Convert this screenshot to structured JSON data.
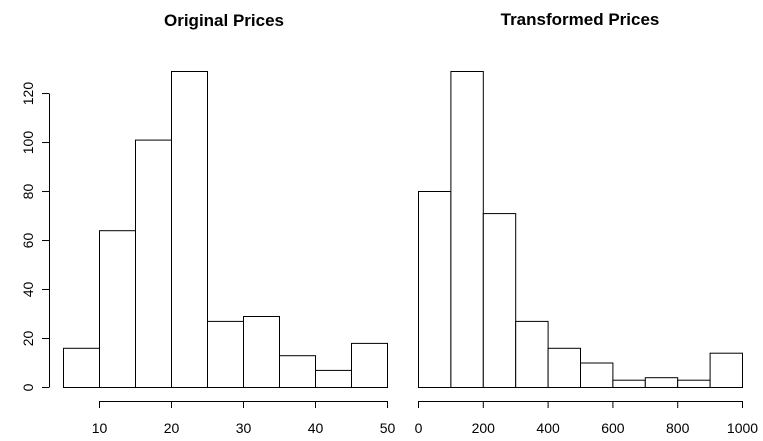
{
  "chart_data": [
    {
      "type": "bar",
      "title": "Original Prices",
      "xlabel": "",
      "ylabel": "",
      "bin_edges": [
        5,
        10,
        15,
        20,
        25,
        30,
        35,
        40,
        45,
        50
      ],
      "values": [
        16,
        64,
        101,
        129,
        27,
        29,
        13,
        7,
        18
      ],
      "x_ticks": [
        10,
        20,
        30,
        40,
        50
      ],
      "y_ticks": [
        0,
        20,
        40,
        60,
        80,
        100,
        120
      ],
      "xlim": [
        5,
        50
      ],
      "ylim": [
        0,
        129
      ],
      "grid": false
    },
    {
      "type": "bar",
      "title": "Transformed Prices",
      "xlabel": "",
      "ylabel": "",
      "bin_edges": [
        0,
        100,
        200,
        300,
        400,
        500,
        600,
        700,
        800,
        900,
        1000
      ],
      "values": [
        80,
        129,
        71,
        27,
        16,
        10,
        3,
        4,
        3,
        14
      ],
      "x_ticks": [
        0,
        200,
        400,
        600,
        800,
        1000
      ],
      "y_ticks": [],
      "xlim": [
        0,
        1000
      ],
      "ylim": [
        0,
        129
      ],
      "grid": false
    }
  ]
}
